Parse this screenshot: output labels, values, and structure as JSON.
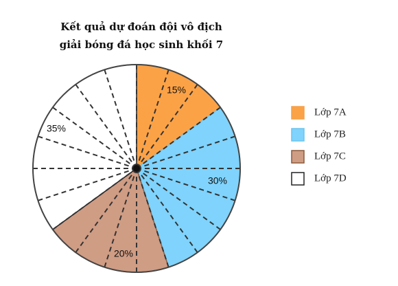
{
  "chart_data": {
    "type": "pie",
    "title_lines": [
      "Kết quả dự đoán đội vô địch",
      "giải bóng đá học sinh khối 7"
    ],
    "categories": [
      "Lớp 7A",
      "Lớp 7B",
      "Lớp 7C",
      "Lớp 7D"
    ],
    "values": [
      15,
      30,
      20,
      35
    ],
    "labels": [
      "15%",
      "30%",
      "20%",
      "35%"
    ],
    "colors": [
      "#FBA247",
      "#7FD3FC",
      "#CF9C84",
      "#FFFFFF"
    ],
    "border_colors": [
      "#F5A049",
      "#6CC4EE",
      "#8B5A3C",
      "#222222"
    ],
    "start_direction": "top",
    "direction": "clockwise",
    "divisions": 20,
    "legend_position": "right"
  }
}
